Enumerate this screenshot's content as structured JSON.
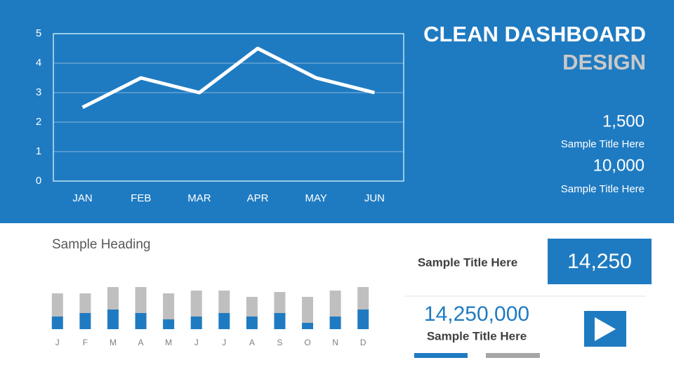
{
  "chart_data": [
    {
      "type": "line",
      "categories": [
        "JAN",
        "FEB",
        "MAR",
        "APR",
        "MAY",
        "JUN"
      ],
      "values": [
        2.5,
        3.5,
        3,
        4.5,
        3.5,
        3
      ],
      "color": "#ffffff",
      "ylim": [
        0,
        5
      ],
      "yticks": [
        0,
        1,
        2,
        3,
        4,
        5
      ],
      "grid": true
    },
    {
      "type": "stacked-bar",
      "title": "Sample Heading",
      "categories": [
        "J",
        "F",
        "M",
        "A",
        "M",
        "J",
        "J",
        "A",
        "S",
        "O",
        "N",
        "D"
      ],
      "series": [
        {
          "color": "#1f7bc1",
          "values": [
            18,
            23,
            28,
            23,
            14,
            18,
            23,
            18,
            23,
            9,
            18,
            28
          ]
        },
        {
          "color": "#bfbfbf",
          "values": [
            33,
            28,
            32,
            37,
            37,
            37,
            32,
            28,
            30,
            37,
            37,
            32
          ]
        }
      ],
      "ylim": [
        0,
        60
      ]
    }
  ],
  "header": {
    "title": "CLEAN DASHBOARD",
    "subtitle": "DESIGN"
  },
  "stats": [
    {
      "value": "1,500",
      "label": "Sample Title Here"
    },
    {
      "value": "10,000",
      "label": "Sample Title Here"
    }
  ],
  "kpi_box": {
    "label": "Sample Title Here",
    "value": "14,250"
  },
  "kpi_big": {
    "value": "14,250,000",
    "label": "Sample Title Here"
  }
}
